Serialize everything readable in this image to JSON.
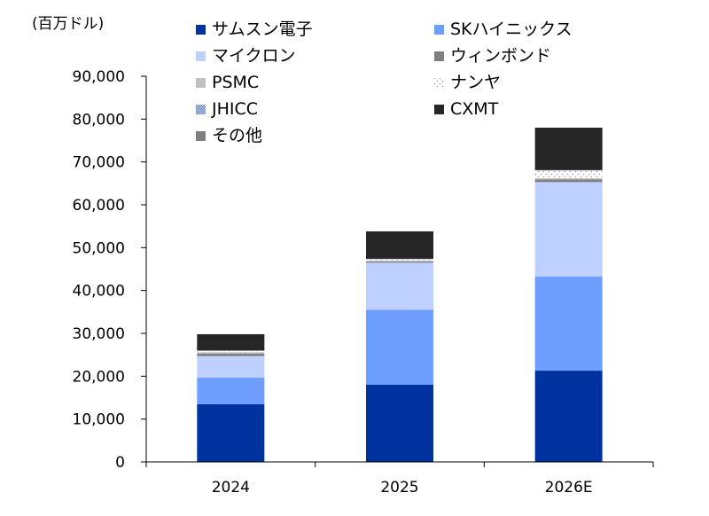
{
  "chart_data": {
    "type": "bar",
    "stacked": true,
    "ylabel": "(百万ドル)",
    "xlabel": "",
    "title": "",
    "categories": [
      "2024",
      "2025",
      "2026E"
    ],
    "ylim": [
      0,
      90000
    ],
    "yticks": [
      0,
      10000,
      20000,
      30000,
      40000,
      50000,
      60000,
      70000,
      80000,
      90000
    ],
    "ytick_labels": [
      "0",
      "10,000",
      "20,000",
      "30,000",
      "40,000",
      "50,000",
      "60,000",
      "70,000",
      "80,000",
      "90,000"
    ],
    "grid": false,
    "legend_position": "top",
    "series": [
      {
        "name": "サムスン電子",
        "color": "#0033a0",
        "pattern": "solid",
        "values": [
          13500,
          18000,
          21300
        ]
      },
      {
        "name": "SKハイニックス",
        "color": "#6e9eff",
        "pattern": "solid",
        "values": [
          6200,
          17500,
          22000
        ]
      },
      {
        "name": "マイクロン",
        "color": "#bdd0ff",
        "pattern": "solid",
        "values": [
          5000,
          11000,
          22000
        ]
      },
      {
        "name": "ウィンボンド",
        "color": "#808080",
        "pattern": "solid",
        "values": [
          600,
          300,
          600
        ]
      },
      {
        "name": "PSMC",
        "color": "#c0c0c0",
        "pattern": "solid",
        "values": [
          300,
          200,
          300
        ]
      },
      {
        "name": "ナンヤ",
        "color": "#bbbbbb",
        "pattern": "dots",
        "values": [
          300,
          300,
          1800
        ]
      },
      {
        "name": "JHICC",
        "color": "#8aa4d6",
        "pattern": "dense",
        "values": [
          100,
          100,
          100
        ]
      },
      {
        "name": "CXMT",
        "color": "#262626",
        "pattern": "solid",
        "values": [
          3800,
          6400,
          9900
        ]
      },
      {
        "name": "その他",
        "color": "#7f7f7f",
        "pattern": "solid",
        "values": [
          0,
          0,
          0
        ]
      }
    ]
  }
}
